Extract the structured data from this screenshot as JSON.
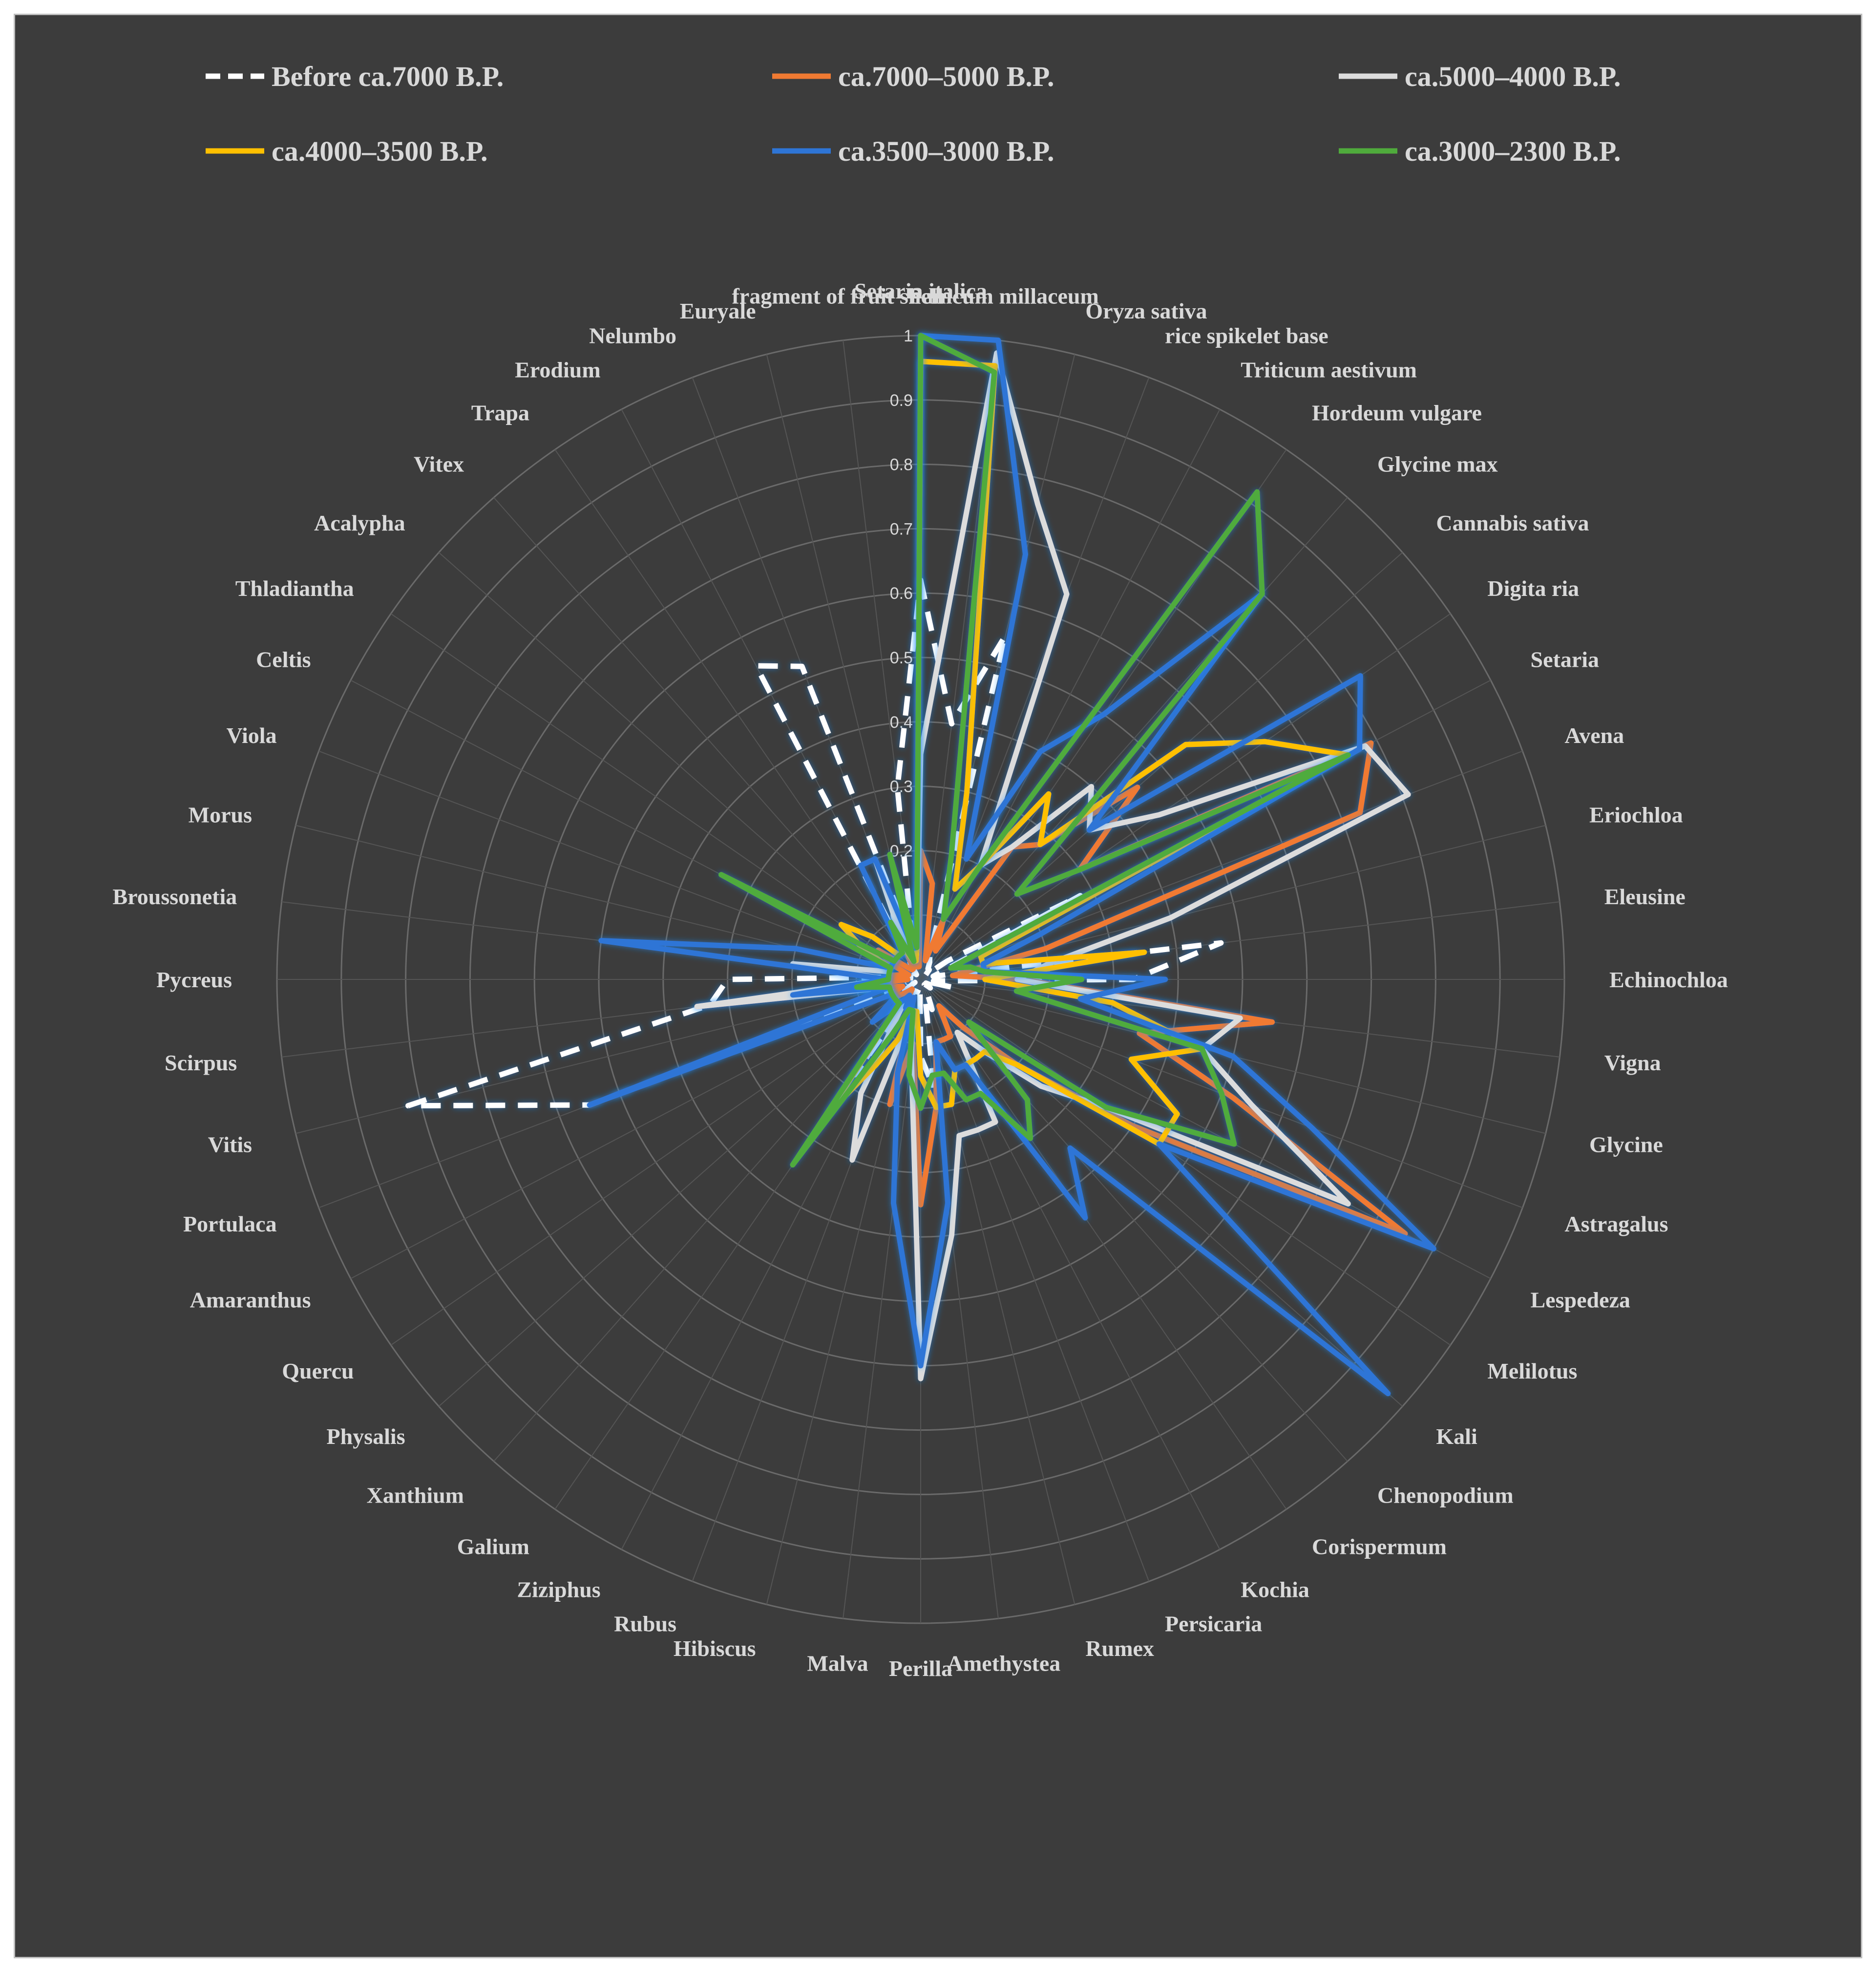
{
  "chart_data": {
    "type": "radar",
    "rmax": 1,
    "ticks": [
      "0",
      "0.1",
      "0.2",
      "0.3",
      "0.4",
      "0.5",
      "0.6",
      "0.7",
      "0.8",
      "0.9",
      "1"
    ],
    "legend_position": "top",
    "categories": [
      "Setaria italica",
      "Panicum millaceum",
      "Oryza sativa",
      "rice spikelet base",
      "Triticum aestivum",
      "Hordeum vulgare",
      "Glycine max",
      "Cannabis sativa",
      "Digita ria",
      "Setaria",
      "Avena",
      "Eriochloa",
      "Eleusine",
      "Echinochloa",
      "Vigna",
      "Glycine",
      "Astragalus",
      "Lespedeza",
      "Melilotus",
      "Kali",
      "Chenopodium",
      "Corispermum",
      "Kochia",
      "Persicaria",
      "Rumex",
      "Amethystea",
      "Perilla",
      "Malva",
      "Hibiscus",
      "Rubus",
      "Ziziphus",
      "Galium",
      "Xanthium",
      "Physalis",
      "Quercu",
      "Amaranthus",
      "Portulaca",
      "Vitis",
      "Scirpus",
      "Pycreus",
      "Broussonetia",
      "Morus",
      "Viola",
      "Celtis",
      "Thladiantha",
      "Acalypha",
      "Vitex",
      "Trapa",
      "Erodium",
      "Nelumbo",
      "Euryale",
      "fragment of fruit shell"
    ],
    "series": [
      {
        "name": "Before ca.7000 B.P.",
        "color": "#ffffff",
        "dash": true,
        "values": [
          0.62,
          0.4,
          0.55,
          0.04,
          0.03,
          0.02,
          0.02,
          0.01,
          0.05,
          0.28,
          0.04,
          0.02,
          0.47,
          0.33,
          0.02,
          0.05,
          0.01,
          0.02,
          0.01,
          0.02,
          0.01,
          0.01,
          0.02,
          0.05,
          0.03,
          0.17,
          0.12,
          0.01,
          0.02,
          0.02,
          0.02,
          0.18,
          0.01,
          0.01,
          0.03,
          0.01,
          0.55,
          0.82,
          0.33,
          0.3,
          0.03,
          0.01,
          0.01,
          0.01,
          0.02,
          0.02,
          0.01,
          0.02,
          0.55,
          0.52,
          0.05,
          0.3
        ]
      },
      {
        "name": "ca.7000–5000 B.P.",
        "color": "#f07a32",
        "dash": false,
        "values": [
          0.2,
          0.15,
          0.03,
          0.1,
          0.05,
          0.25,
          0.28,
          0.45,
          0.3,
          0.79,
          0.73,
          0.2,
          0.05,
          0.16,
          0.55,
          0.35,
          0.52,
          0.85,
          0.4,
          0.2,
          0.1,
          0.05,
          0.1,
          0.1,
          0.1,
          0.2,
          0.35,
          0.1,
          0.2,
          0.03,
          0.05,
          0.03,
          0.02,
          0.03,
          0.05,
          0.05,
          0.03,
          0.05,
          0.35,
          0.02,
          0.05,
          0.03,
          0.02,
          0.05,
          0.08,
          0.03,
          0.02,
          0.02,
          0.05,
          0.04,
          0.02,
          0.02
        ]
      },
      {
        "name": "ca.5000–4000 B.P.",
        "color": "#dcdcdc",
        "dash": false,
        "values": [
          0.35,
          0.98,
          0.76,
          0.64,
          0.2,
          0.25,
          0.4,
          0.35,
          0.45,
          0.78,
          0.81,
          0.4,
          0.2,
          0.15,
          0.5,
          0.45,
          0.55,
          0.75,
          0.35,
          0.25,
          0.15,
          0.1,
          0.25,
          0.25,
          0.25,
          0.4,
          0.62,
          0.12,
          0.05,
          0.3,
          0.2,
          0.05,
          0.05,
          0.05,
          0.05,
          0.05,
          0.05,
          0.05,
          0.35,
          0.05,
          0.2,
          0.05,
          0.05,
          0.05,
          0.05,
          0.05,
          0.05,
          0.05,
          0.05,
          0.2,
          0.03,
          0.05
        ]
      },
      {
        "name": "ca.4000–3500 B.P.",
        "color": "#ffc000",
        "dash": false,
        "values": [
          0.96,
          0.96,
          0.3,
          0.15,
          0.2,
          0.35,
          0.28,
          0.55,
          0.65,
          0.75,
          0.1,
          0.1,
          0.35,
          0.1,
          0.3,
          0.45,
          0.35,
          0.45,
          0.45,
          0.2,
          0.15,
          0.15,
          0.15,
          0.15,
          0.2,
          0.2,
          0.15,
          0.05,
          0.05,
          0.1,
          0.15,
          0.25,
          0.05,
          0.05,
          0.05,
          0.05,
          0.05,
          0.05,
          0.15,
          0.05,
          0.05,
          0.05,
          0.05,
          0.1,
          0.15,
          0.1,
          0.05,
          0.05,
          0.05,
          0.03,
          0.03,
          0.05
        ]
      },
      {
        "name": "ca.3500–3000 B.P.",
        "color": "#2e75d6",
        "dash": false,
        "values": [
          1.0,
          1.0,
          0.68,
          0.2,
          0.4,
          0.5,
          0.8,
          0.35,
          0.83,
          0.77,
          0.2,
          0.1,
          0.1,
          0.38,
          0.25,
          0.5,
          0.65,
          0.9,
          0.45,
          0.97,
          0.35,
          0.45,
          0.15,
          0.15,
          0.1,
          0.35,
          0.6,
          0.35,
          0.15,
          0.03,
          0.05,
          0.03,
          0.05,
          0.1,
          0.05,
          0.05,
          0.55,
          0.05,
          0.2,
          0.05,
          0.5,
          0.2,
          0.05,
          0.05,
          0.05,
          0.05,
          0.05,
          0.05,
          0.2,
          0.2,
          0.05,
          0.05
        ]
      },
      {
        "name": "ca.3000–2300 B.P.",
        "color": "#4fab3c",
        "dash": false,
        "values": [
          1.0,
          0.95,
          0.2,
          0.1,
          0.2,
          0.92,
          0.8,
          0.2,
          0.3,
          0.75,
          0.05,
          0.08,
          0.1,
          0.25,
          0.15,
          0.45,
          0.5,
          0.55,
          0.35,
          0.1,
          0.25,
          0.3,
          0.2,
          0.2,
          0.15,
          0.15,
          0.2,
          0.15,
          0.05,
          0.05,
          0.1,
          0.35,
          0.05,
          0.05,
          0.05,
          0.05,
          0.05,
          0.05,
          0.1,
          0.05,
          0.05,
          0.05,
          0.05,
          0.35,
          0.05,
          0.05,
          0.05,
          0.05,
          0.1,
          0.03,
          0.2,
          0.05
        ]
      }
    ]
  }
}
